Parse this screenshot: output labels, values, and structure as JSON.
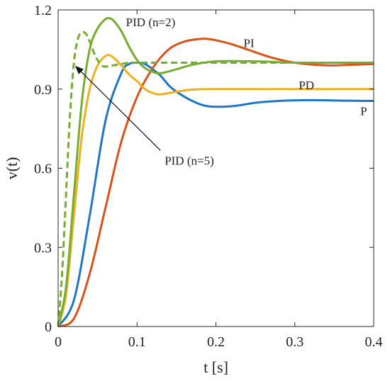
{
  "chart_data": {
    "type": "line",
    "xlabel": "t [s]",
    "ylabel": "v(t)",
    "xlim": [
      0,
      0.4
    ],
    "ylim": [
      0,
      1.2
    ],
    "xticks": [
      0,
      0.1,
      0.2,
      0.3,
      0.4
    ],
    "xtick_labels": [
      "0",
      "0.1",
      "0.2",
      "0.3",
      "0.4"
    ],
    "yticks": [
      0,
      0.3,
      0.6,
      0.9,
      1.2
    ],
    "ytick_labels": [
      "0",
      "0.3",
      "0.6",
      "0.9",
      "1.2"
    ],
    "grid": false,
    "legend": "none",
    "series": [
      {
        "name": "P",
        "color": "#1f77c4",
        "dash": "solid",
        "x": [
          0,
          0.02,
          0.04,
          0.06,
          0.08,
          0.09,
          0.1,
          0.11,
          0.12,
          0.13,
          0.14,
          0.15,
          0.17,
          0.19,
          0.22,
          0.25,
          0.28,
          0.32,
          0.36,
          0.4
        ],
        "y": [
          0,
          0.1,
          0.42,
          0.78,
          0.96,
          0.995,
          1.0,
          0.995,
          0.975,
          0.95,
          0.915,
          0.89,
          0.855,
          0.835,
          0.835,
          0.848,
          0.855,
          0.858,
          0.856,
          0.855
        ]
      },
      {
        "name": "PI",
        "color": "#d95319",
        "dash": "solid",
        "x": [
          0,
          0.02,
          0.04,
          0.06,
          0.08,
          0.1,
          0.12,
          0.14,
          0.16,
          0.18,
          0.19,
          0.2,
          0.22,
          0.24,
          0.27,
          0.3,
          0.34,
          0.37,
          0.4
        ],
        "y": [
          0,
          0.03,
          0.2,
          0.45,
          0.7,
          0.87,
          0.98,
          1.05,
          1.08,
          1.09,
          1.09,
          1.085,
          1.07,
          1.05,
          1.02,
          1.0,
          0.99,
          0.992,
          0.995
        ]
      },
      {
        "name": "PD",
        "color": "#edb120",
        "dash": "solid",
        "x": [
          0,
          0.01,
          0.02,
          0.03,
          0.04,
          0.05,
          0.06,
          0.065,
          0.07,
          0.08,
          0.09,
          0.1,
          0.11,
          0.12,
          0.13,
          0.15,
          0.17,
          0.2,
          0.25,
          0.3,
          0.35,
          0.4
        ],
        "y": [
          0,
          0.12,
          0.42,
          0.72,
          0.9,
          0.99,
          1.025,
          1.028,
          1.02,
          0.99,
          0.955,
          0.93,
          0.9,
          0.885,
          0.88,
          0.89,
          0.898,
          0.9,
          0.9,
          0.9,
          0.9,
          0.9
        ]
      },
      {
        "name": "PID (n=2)",
        "color": "#77ac30",
        "dash": "solid",
        "x": [
          0,
          0.01,
          0.02,
          0.03,
          0.04,
          0.05,
          0.06,
          0.065,
          0.07,
          0.08,
          0.09,
          0.1,
          0.11,
          0.12,
          0.13,
          0.15,
          0.17,
          0.2,
          0.25,
          0.3,
          0.35,
          0.4
        ],
        "y": [
          0,
          0.15,
          0.5,
          0.85,
          1.05,
          1.13,
          1.165,
          1.168,
          1.16,
          1.12,
          1.06,
          1.01,
          0.98,
          0.965,
          0.96,
          0.975,
          0.992,
          1.005,
          1.005,
          1.0,
          1.0,
          1.0
        ]
      },
      {
        "name": "PID (n=5)",
        "color": "#77ac30",
        "dash": "dashed",
        "x": [
          0,
          0.005,
          0.01,
          0.015,
          0.02,
          0.025,
          0.03,
          0.035,
          0.04,
          0.045,
          0.05,
          0.055,
          0.06,
          0.07,
          0.08,
          0.09,
          0.1,
          0.12,
          0.15,
          0.2,
          0.25,
          0.3,
          0.35,
          0.4
        ],
        "y": [
          0,
          0.2,
          0.5,
          0.8,
          1.0,
          1.09,
          1.115,
          1.11,
          1.08,
          1.04,
          1.01,
          0.99,
          0.985,
          0.99,
          0.995,
          1.0,
          1.0,
          1.0,
          1.0,
          1.0,
          1.0,
          1.0,
          1.0,
          1.0
        ]
      }
    ],
    "annotations": [
      {
        "id": "pid-n2",
        "text": "PID (n=2)",
        "x": 0.086,
        "y": 1.155
      },
      {
        "id": "pi",
        "text": "PI",
        "x": 0.235,
        "y": 1.075
      },
      {
        "id": "pd",
        "text": "PD",
        "x": 0.305,
        "y": 0.915
      },
      {
        "id": "p",
        "text": "P",
        "x": 0.383,
        "y": 0.818
      },
      {
        "id": "pid-n5",
        "text": "PID (n=5)",
        "x": 0.135,
        "y": 0.63,
        "arrow_to": {
          "x": 0.021,
          "y": 0.99
        }
      }
    ]
  }
}
